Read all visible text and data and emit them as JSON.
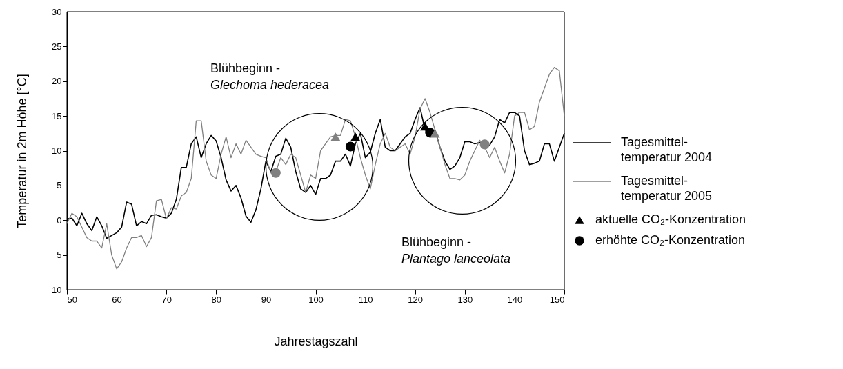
{
  "chart_data": {
    "type": "line",
    "xlabel": "Jahrestagszahl",
    "ylabel": "Temperatur in 2m Höhe [°C]",
    "xlim": [
      50,
      150
    ],
    "xticks": [
      50,
      60,
      70,
      80,
      90,
      100,
      110,
      120,
      130,
      140,
      150
    ],
    "ylim": [
      -10,
      30
    ],
    "yticks": [
      -10,
      -5,
      0,
      5,
      10,
      15,
      20,
      25,
      30
    ],
    "grid": false,
    "legend": "right",
    "x": [
      50,
      51,
      52,
      53,
      54,
      55,
      56,
      57,
      58,
      59,
      60,
      61,
      62,
      63,
      64,
      65,
      66,
      67,
      68,
      69,
      70,
      71,
      72,
      73,
      74,
      75,
      76,
      77,
      78,
      79,
      80,
      81,
      82,
      83,
      84,
      85,
      86,
      87,
      88,
      89,
      90,
      91,
      92,
      93,
      94,
      95,
      96,
      97,
      98,
      99,
      100,
      101,
      102,
      103,
      104,
      105,
      106,
      107,
      108,
      109,
      110,
      111,
      112,
      113,
      114,
      115,
      116,
      117,
      118,
      119,
      120,
      121,
      122,
      123,
      124,
      125,
      126,
      127,
      128,
      129,
      130,
      131,
      132,
      133,
      134,
      135,
      136,
      137,
      138,
      139,
      140,
      141,
      142,
      143,
      144,
      145,
      146,
      147,
      148,
      149,
      150
    ],
    "series": [
      {
        "name": "Tagesmittel-\ntemperatur 2004",
        "color": "#000000",
        "line_style": "solid",
        "marker": "none",
        "values": [
          0.2,
          0.3,
          -0.8,
          1.0,
          -0.5,
          -1.5,
          0.5,
          -0.8,
          -2.6,
          -2.2,
          -1.8,
          -1.0,
          2.6,
          2.3,
          -0.8,
          -0.2,
          -0.5,
          0.7,
          0.8,
          0.5,
          0.3,
          1.0,
          3.0,
          7.6,
          7.6,
          11.0,
          12.0,
          9.0,
          11.0,
          12.2,
          11.4,
          9.0,
          5.8,
          4.2,
          5.0,
          3.2,
          0.6,
          -0.3,
          1.5,
          4.5,
          8.5,
          7.0,
          9.2,
          9.5,
          11.8,
          10.5,
          7.0,
          4.5,
          4.0,
          5.0,
          3.7,
          6.0,
          6.0,
          6.5,
          8.5,
          8.5,
          9.5,
          7.8,
          11.0,
          12.5,
          9.0,
          9.8,
          12.5,
          14.5,
          10.5,
          10.0,
          10.0,
          11.0,
          12.0,
          12.5,
          14.5,
          16.2,
          13.0,
          12.5,
          13.0,
          10.5,
          8.5,
          7.3,
          7.8,
          9.0,
          11.3,
          11.3,
          11.0,
          11.2,
          10.5,
          10.8,
          12.0,
          14.5,
          14.0,
          15.5,
          15.5,
          15.0,
          10.0,
          8.0,
          8.2,
          8.5,
          11.0,
          11.0,
          8.5,
          10.5,
          12.5
        ]
      },
      {
        "name": "Tagesmittel-\ntemperatur 2005",
        "color": "#808080",
        "line_style": "solid",
        "marker": "none",
        "values": [
          -0.5,
          1.0,
          0.5,
          -1.0,
          -2.5,
          -3.0,
          -3.0,
          -4.0,
          -0.5,
          -5.0,
          -7.0,
          -6.0,
          -4.0,
          -2.5,
          -2.5,
          -2.2,
          -3.8,
          -2.5,
          2.8,
          3.0,
          0.2,
          1.8,
          1.6,
          3.5,
          4.0,
          6.0,
          14.3,
          14.3,
          8.5,
          6.5,
          6.0,
          9.5,
          12.0,
          9.0,
          11.0,
          9.5,
          11.5,
          10.5,
          9.5,
          9.2,
          9.0,
          6.8,
          7.0,
          9.0,
          8.0,
          9.5,
          9.0,
          6.5,
          4.0,
          6.5,
          6.0,
          10.0,
          11.0,
          12.0,
          12.2,
          12.2,
          14.5,
          14.3,
          12.0,
          9.0,
          6.5,
          4.5,
          8.0,
          11.0,
          12.5,
          10.5,
          10.0,
          10.5,
          11.0,
          9.5,
          12.0,
          16.0,
          17.5,
          15.5,
          13.0,
          10.5,
          8.0,
          6.0,
          6.0,
          5.8,
          6.5,
          8.5,
          10.0,
          11.5,
          10.5,
          9.0,
          10.5,
          8.5,
          6.8,
          9.5,
          15.0,
          15.5,
          15.5,
          13.0,
          13.5,
          17.0,
          19.0,
          21.0,
          22.0,
          21.5,
          15.0
        ]
      },
      {
        "name": "aktuelle CO₂-Konzentration",
        "type": "scatter",
        "color": "#000000",
        "marker": "triangle",
        "x": [
          108,
          122
        ],
        "values": [
          12.0,
          13.5
        ]
      },
      {
        "name": "erhöhte CO₂-Konzentration",
        "type": "scatter",
        "color": "#000000",
        "marker": "circle",
        "x": [
          107,
          123
        ],
        "values": [
          10.6,
          12.6
        ]
      },
      {
        "type": "scatter",
        "color": "#808080",
        "marker": "triangle",
        "x": [
          104,
          124
        ],
        "values": [
          12.0,
          12.5
        ]
      },
      {
        "type": "scatter",
        "color": "#808080",
        "marker": "circle",
        "x": [
          92,
          134
        ],
        "values": [
          6.8,
          10.9
        ]
      }
    ],
    "annotations": [
      "Blühbeginn -\nGlechoma hederacea",
      "Blühbeginn -\nPlantago lanceolata"
    ]
  }
}
